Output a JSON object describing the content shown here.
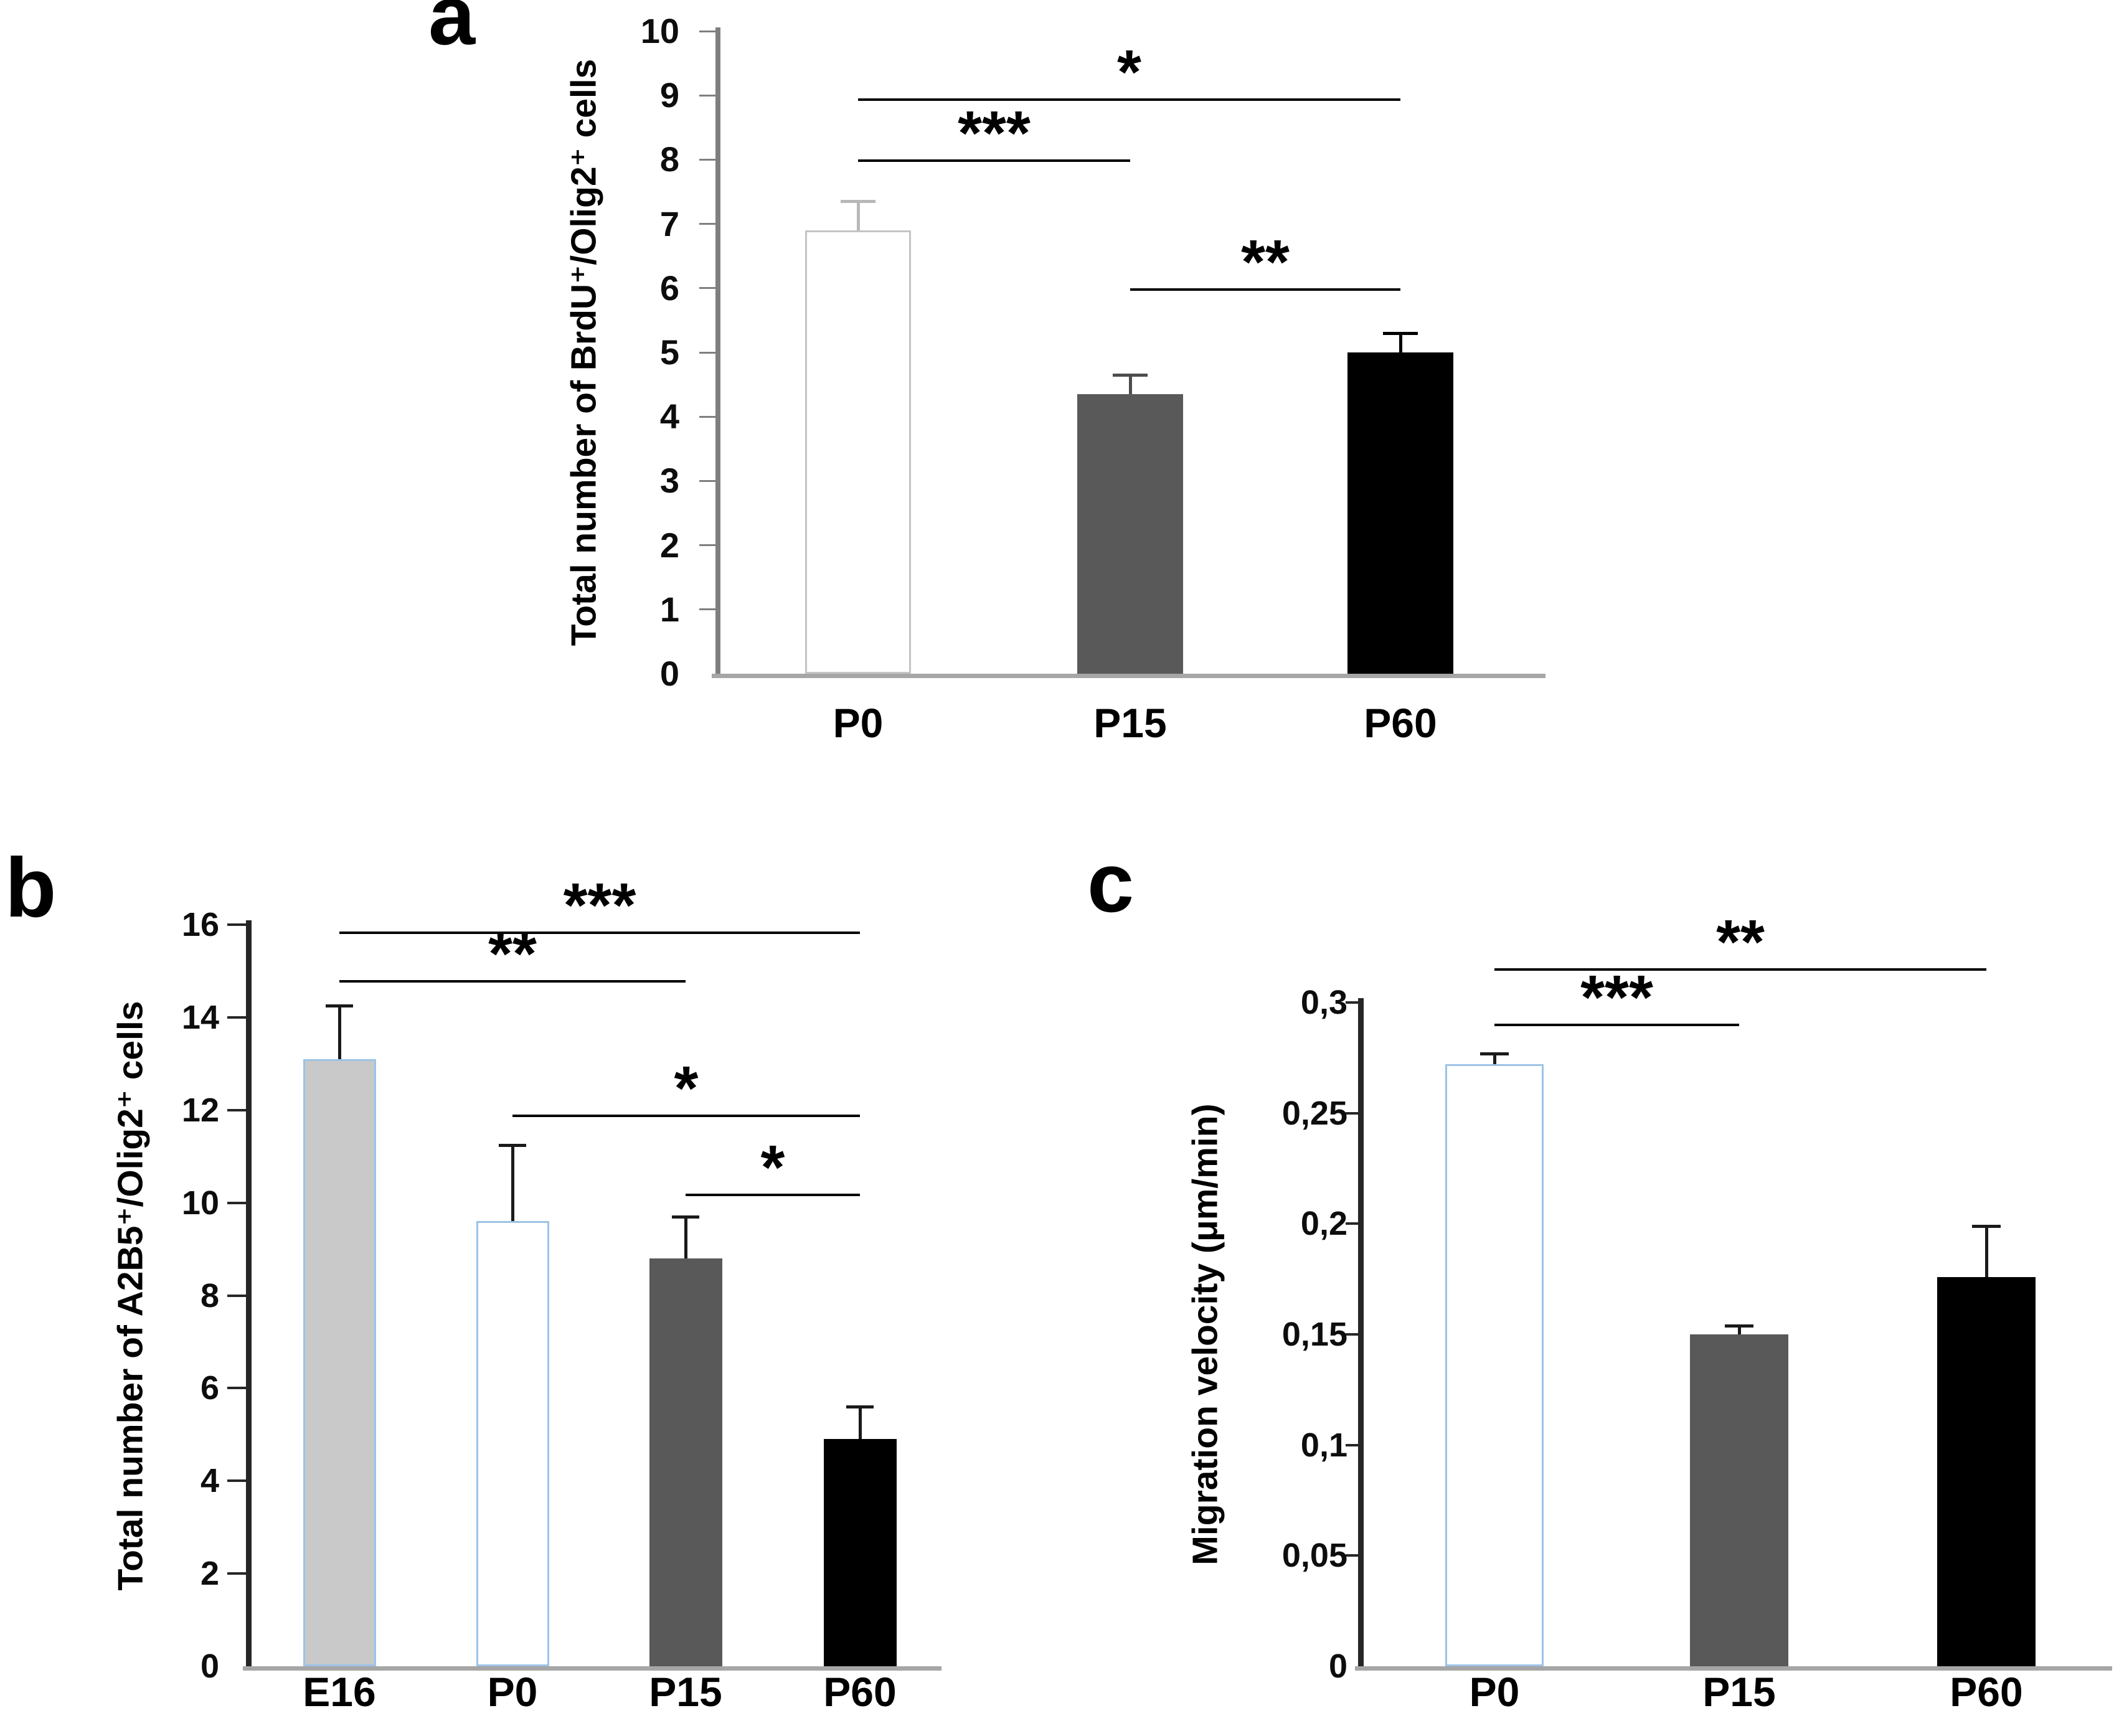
{
  "page": {
    "background": "#ffffff"
  },
  "panels": [
    {
      "id": "a",
      "letter": "a"
    },
    {
      "id": "b",
      "letter": "b"
    },
    {
      "id": "c",
      "letter": "c"
    }
  ],
  "chart_data": [
    {
      "panel": "a",
      "type": "bar",
      "title": "",
      "xlabel": "",
      "ylabel": "Total number of BrdU⁺/Olig2⁺ cells",
      "categories": [
        "P0",
        "P15",
        "P60"
      ],
      "values": [
        6.9,
        4.35,
        5.0
      ],
      "errors_up": [
        0.45,
        0.3,
        0.3
      ],
      "ylim": [
        0,
        10
      ],
      "ytick_step": 1,
      "ytick_labels": [
        "0",
        "1",
        "2",
        "3",
        "4",
        "5",
        "6",
        "7",
        "8",
        "9",
        "10"
      ],
      "grid": false,
      "legend": null,
      "bar_fills": [
        "#ffffff",
        "#595959",
        "#000000"
      ],
      "bar_borders": [
        "#c4c4c4",
        "#595959",
        "#000000"
      ],
      "error_colors": [
        "#b8b8b8",
        "#4d4d4d",
        "#000000"
      ],
      "significance": [
        {
          "from": "P0",
          "to": "P60",
          "label": "*",
          "y": 8.95
        },
        {
          "from": "P0",
          "to": "P15",
          "label": "***",
          "y": 8.0
        },
        {
          "from": "P15",
          "to": "P60",
          "label": "**",
          "y": 6.0
        }
      ]
    },
    {
      "panel": "b",
      "type": "bar",
      "title": "",
      "xlabel": "",
      "ylabel": "Total number of A2B5⁺/Olig2⁺ cells",
      "categories": [
        "E16",
        "P0",
        "P15",
        "P60"
      ],
      "values": [
        13.1,
        9.6,
        8.8,
        4.9
      ],
      "errors_up": [
        1.15,
        1.65,
        0.9,
        0.7
      ],
      "ylim": [
        0,
        16
      ],
      "ytick_step": 2,
      "ytick_labels": [
        "0",
        "2",
        "4",
        "6",
        "8",
        "10",
        "12",
        "14",
        "16"
      ],
      "grid": false,
      "legend": null,
      "bar_fills": [
        "#c9c9c9",
        "#ffffff",
        "#595959",
        "#000000"
      ],
      "bar_borders": [
        "#9dc3e6",
        "#9dc3e6",
        "#595959",
        "#000000"
      ],
      "error_colors": [
        "#1a1a1a",
        "#1a1a1a",
        "#1a1a1a",
        "#1a1a1a"
      ],
      "significance": [
        {
          "from": "E16",
          "to": "P60",
          "label": "***",
          "y": 15.85
        },
        {
          "from": "E16",
          "to": "P15",
          "label": "**",
          "y": 14.8
        },
        {
          "from": "P0",
          "to": "P60",
          "label": "*",
          "y": 11.9
        },
        {
          "from": "P15",
          "to": "P60",
          "label": "*",
          "y": 10.2
        }
      ]
    },
    {
      "panel": "c",
      "type": "bar",
      "title": "",
      "xlabel": "",
      "ylabel": "Migration velocity (μm/min)",
      "categories": [
        "P0",
        "P15",
        "P60"
      ],
      "values": [
        0.272,
        0.15,
        0.176
      ],
      "errors_up": [
        0.005,
        0.004,
        0.023
      ],
      "ylim": [
        0,
        0.3
      ],
      "ytick_step": 0.05,
      "ytick_labels": [
        "0",
        "0,05",
        "0,1",
        "0,15",
        "0,2",
        "0,25",
        "0,3"
      ],
      "grid": false,
      "legend": null,
      "bar_fills": [
        "#ffffff",
        "#595959",
        "#000000"
      ],
      "bar_borders": [
        "#9dc3e6",
        "#595959",
        "#000000"
      ],
      "error_colors": [
        "#1a1a1a",
        "#1a1a1a",
        "#1a1a1a"
      ],
      "significance": [
        {
          "from": "P0",
          "to": "P60",
          "label": "**",
          "y": 0.3155
        },
        {
          "from": "P0",
          "to": "P15",
          "label": "***",
          "y": 0.2905
        }
      ]
    }
  ]
}
